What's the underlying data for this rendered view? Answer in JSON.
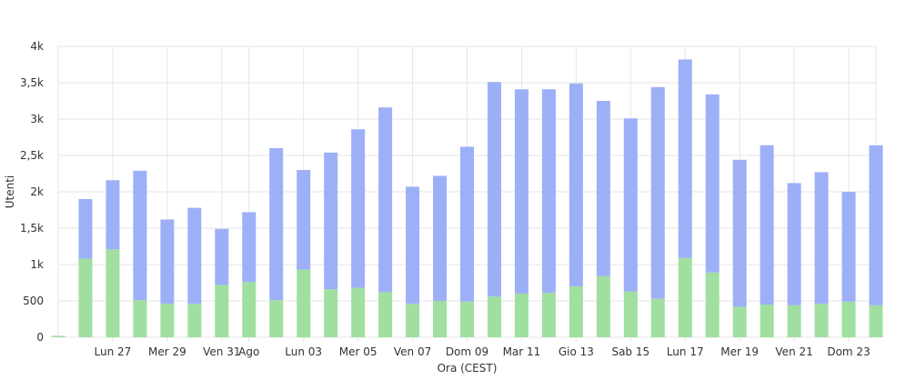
{
  "chart_data": {
    "type": "bar",
    "stacked": true,
    "xlabel": "Ora (CEST)",
    "ylabel": "Utenti",
    "ylim": [
      0,
      4000
    ],
    "y_ticks": [
      {
        "value": 0,
        "label": "0"
      },
      {
        "value": 500,
        "label": "500"
      },
      {
        "value": 1000,
        "label": "1k"
      },
      {
        "value": 1500,
        "label": "1,5k"
      },
      {
        "value": 2000,
        "label": "2k"
      },
      {
        "value": 2500,
        "label": "2,5k"
      },
      {
        "value": 3000,
        "label": "3k"
      },
      {
        "value": 3500,
        "label": "3,5k"
      },
      {
        "value": 4000,
        "label": "4k"
      }
    ],
    "x_start": "2023-07-25",
    "x_end": "2023-08-24",
    "x_ticks": [
      {
        "date": "2023-07-27",
        "label": "Lun 27"
      },
      {
        "date": "2023-07-29",
        "label": "Mer 29"
      },
      {
        "date": "2023-07-31",
        "label": "Ven 31"
      },
      {
        "date": "2023-08-01",
        "label": "Ago"
      },
      {
        "date": "2023-08-03",
        "label": "Lun 03"
      },
      {
        "date": "2023-08-05",
        "label": "Mer 05"
      },
      {
        "date": "2023-08-07",
        "label": "Ven 07"
      },
      {
        "date": "2023-08-09",
        "label": "Dom 09"
      },
      {
        "date": "2023-08-11",
        "label": "Mar 11"
      },
      {
        "date": "2023-08-13",
        "label": "Gio 13"
      },
      {
        "date": "2023-08-15",
        "label": "Sab 15"
      },
      {
        "date": "2023-08-17",
        "label": "Lun 17"
      },
      {
        "date": "2023-08-19",
        "label": "Mer 19"
      },
      {
        "date": "2023-08-21",
        "label": "Ven 21"
      },
      {
        "date": "2023-08-23",
        "label": "Dom 23"
      }
    ],
    "x": [
      "2023-07-25",
      "2023-07-26",
      "2023-07-27",
      "2023-07-28",
      "2023-07-29",
      "2023-07-30",
      "2023-07-31",
      "2023-08-01",
      "2023-08-02",
      "2023-08-03",
      "2023-08-04",
      "2023-08-05",
      "2023-08-06",
      "2023-08-07",
      "2023-08-08",
      "2023-08-09",
      "2023-08-10",
      "2023-08-11",
      "2023-08-12",
      "2023-08-13",
      "2023-08-14",
      "2023-08-15",
      "2023-08-16",
      "2023-08-17",
      "2023-08-18",
      "2023-08-19",
      "2023-08-20",
      "2023-08-21",
      "2023-08-22",
      "2023-08-23",
      "2023-08-24"
    ],
    "series": [
      {
        "color": "#a0dfa0",
        "values": [
          20,
          1080,
          1210,
          510,
          460,
          460,
          720,
          760,
          510,
          930,
          660,
          680,
          620,
          460,
          500,
          490,
          560,
          600,
          610,
          700,
          840,
          630,
          530,
          1090,
          890,
          420,
          450,
          440,
          460,
          490,
          440
        ]
      },
      {
        "color": "#9db0f7",
        "values": [
          0,
          820,
          950,
          1780,
          1160,
          1320,
          770,
          960,
          2090,
          1370,
          1880,
          2180,
          2540,
          1610,
          1720,
          2130,
          2950,
          2810,
          2800,
          2790,
          2410,
          2380,
          2910,
          2730,
          2450,
          2020,
          2190,
          1680,
          1810,
          1510,
          2200
        ]
      }
    ],
    "grid": true,
    "legend": "none"
  }
}
